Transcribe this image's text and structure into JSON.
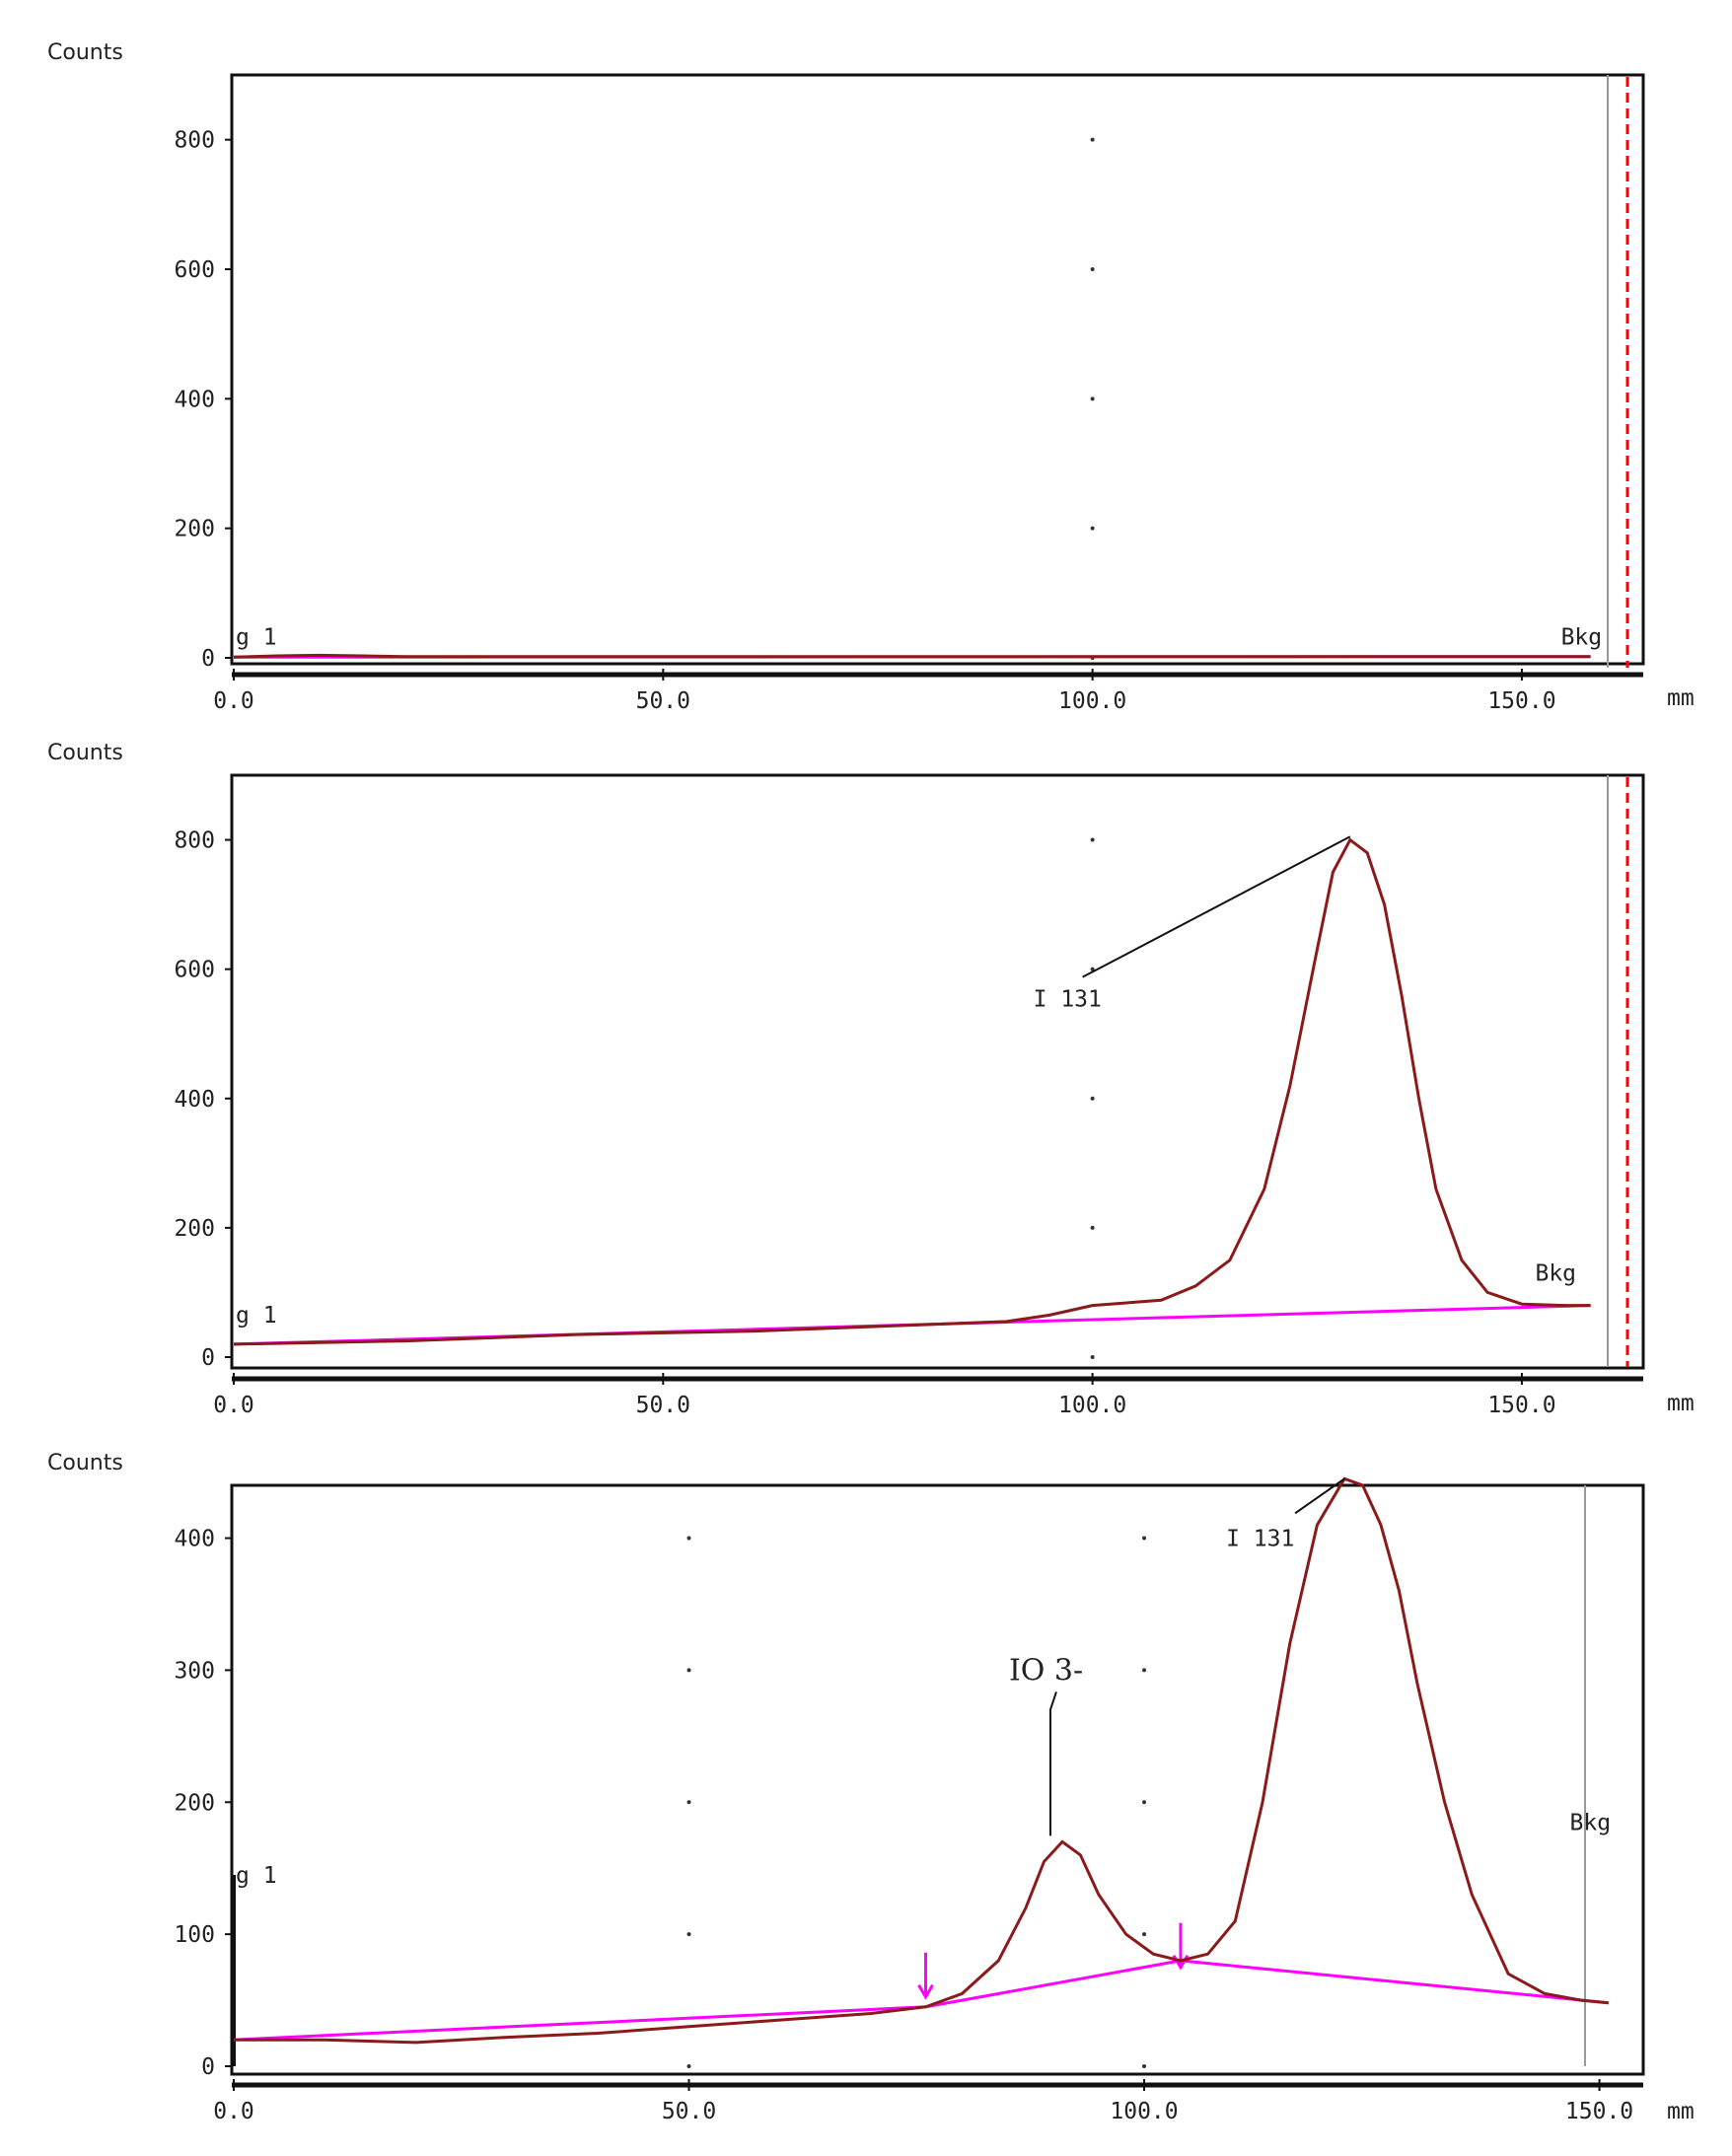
{
  "colors": {
    "signal": "#8b1a1a",
    "baseline": "#ff00ff",
    "marker": "#ff0000",
    "frame": "#111111"
  },
  "chart_data": [
    {
      "type": "line",
      "ylabel": "Counts",
      "xunit": "mm",
      "xlim": [
        0,
        160
      ],
      "ylim": [
        0,
        900
      ],
      "xticks": [
        0,
        50,
        100,
        150
      ],
      "xtick_labels": [
        "0.0",
        "50.0",
        "100.0",
        "150.0"
      ],
      "yticks": [
        0,
        200,
        400,
        600,
        800
      ],
      "ytick_labels": [
        "0",
        "200",
        "400",
        "600",
        "800"
      ],
      "series": [
        {
          "role": "signal",
          "x": [
            0,
            5,
            10,
            15,
            20,
            40,
            60,
            80,
            100,
            120,
            140,
            155,
            158
          ],
          "y": [
            1,
            3,
            4,
            3,
            2,
            2,
            2,
            2,
            2,
            2,
            2,
            2,
            2
          ]
        },
        {
          "role": "baseline",
          "x": [
            0,
            158
          ],
          "y": [
            1,
            2
          ]
        }
      ],
      "annotations": [
        {
          "text": "g 1",
          "x": 0,
          "y": 2
        },
        {
          "text": "Bkg",
          "x": 158,
          "y": 2
        }
      ]
    },
    {
      "type": "line",
      "ylabel": "Counts",
      "xunit": "mm",
      "xlim": [
        0,
        160
      ],
      "ylim": [
        0,
        900
      ],
      "xticks": [
        0,
        50,
        100,
        150
      ],
      "xtick_labels": [
        "0.0",
        "50.0",
        "100.0",
        "150.0"
      ],
      "yticks": [
        0,
        200,
        400,
        600,
        800
      ],
      "ytick_labels": [
        "0",
        "200",
        "400",
        "600",
        "800"
      ],
      "series": [
        {
          "role": "signal",
          "x": [
            0,
            20,
            40,
            60,
            80,
            90,
            95,
            100,
            105,
            108,
            112,
            116,
            120,
            123,
            126,
            128,
            130,
            132,
            134,
            136,
            138,
            140,
            143,
            146,
            150,
            155,
            158
          ],
          "y": [
            20,
            25,
            35,
            40,
            50,
            55,
            65,
            80,
            85,
            88,
            110,
            150,
            260,
            420,
            620,
            750,
            800,
            780,
            700,
            560,
            400,
            260,
            150,
            100,
            82,
            80,
            80
          ],
          "peak_label": "I 131",
          "peak_x": 130,
          "peak_y": 805
        },
        {
          "role": "baseline",
          "x": [
            0,
            158
          ],
          "y": [
            20,
            80
          ]
        }
      ],
      "annotations": [
        {
          "text": "g 1",
          "x": 0,
          "y": 35
        },
        {
          "text": "Bkg",
          "x": 155,
          "y": 100
        }
      ]
    },
    {
      "type": "line",
      "ylabel": "Counts",
      "xunit": "mm",
      "xlim": [
        0,
        152
      ],
      "ylim": [
        0,
        440
      ],
      "xticks": [
        0,
        50,
        100,
        150
      ],
      "xtick_labels": [
        "0.0",
        "50.0",
        "100.0",
        "150.0"
      ],
      "yticks": [
        0,
        100,
        200,
        300,
        400
      ],
      "ytick_labels": [
        "0",
        "100",
        "200",
        "300",
        "400"
      ],
      "series": [
        {
          "role": "signal",
          "x": [
            0,
            10,
            20,
            30,
            40,
            50,
            60,
            70,
            76,
            80,
            84,
            87,
            89,
            91,
            93,
            95,
            98,
            101,
            104,
            107,
            110,
            113,
            116,
            119,
            122,
            124,
            126,
            128,
            130,
            133,
            136,
            140,
            144,
            148,
            151
          ],
          "y": [
            20,
            20,
            18,
            22,
            25,
            30,
            35,
            40,
            45,
            55,
            80,
            120,
            155,
            170,
            160,
            130,
            100,
            85,
            80,
            85,
            110,
            200,
            320,
            410,
            445,
            440,
            410,
            360,
            290,
            200,
            130,
            70,
            55,
            50,
            48
          ],
          "peak_labels": [
            {
              "text": "IO 3-",
              "x": 91,
              "y": 170
            },
            {
              "text": "I 131",
              "x": 122,
              "y": 445
            }
          ]
        },
        {
          "role": "baseline",
          "x": [
            0,
            76,
            104,
            151
          ],
          "y": [
            20,
            45,
            80,
            48
          ]
        }
      ],
      "region_markers_x": [
        76,
        104
      ],
      "annotations": [
        {
          "text": "g 1",
          "x": 0,
          "y": 130
        },
        {
          "text": "Bkg",
          "x": 150,
          "y": 170
        }
      ]
    }
  ]
}
